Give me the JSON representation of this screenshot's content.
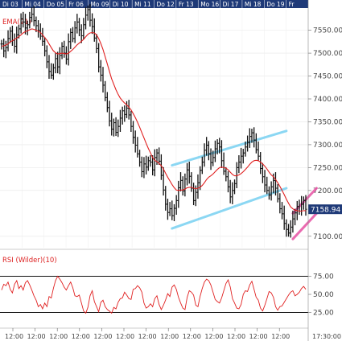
{
  "chart_data": {
    "type": "line",
    "date_labels": [
      "Di 03",
      "Mi 04",
      "Do 05",
      "Fr 06",
      "Mo 09",
      "Di 10",
      "Mi 11",
      "Do 12",
      "Fr 13",
      "Mo 16",
      "Di 17",
      "Mi 18",
      "Do 19",
      "Fr"
    ],
    "time_labels": [
      "12:00",
      "12:00",
      "12:00",
      "12:00",
      "12:00",
      "12:00",
      "12:00",
      "12:00",
      "12:00",
      "12:00",
      "12:00",
      "12:00",
      "12:00"
    ],
    "time_last_label": "17:30:00",
    "price_axis": {
      "ticks": [
        7550,
        7500,
        7450,
        7400,
        7350,
        7300,
        7250,
        7200,
        7100
      ],
      "range": [
        7075,
        7595
      ]
    },
    "rsi_axis": {
      "ticks": [
        75,
        50,
        25
      ],
      "range": [
        10,
        90
      ]
    },
    "last_price_label": "7158.94",
    "ema_label": "EMA(21)",
    "rsi_label": "RSI (Wilder)(10)",
    "colors": {
      "price": "#111111",
      "ema": "#e02020",
      "rsi": "#e02020",
      "channel": "#7fd3f2",
      "wedge": "#e85aa8",
      "header": "#1f3a78",
      "last_badge": "#1f3a78"
    },
    "price_series": [
      7520,
      7505,
      7512,
      7532,
      7548,
      7528,
      7515,
      7540,
      7553,
      7575,
      7568,
      7555,
      7562,
      7578,
      7585,
      7571,
      7560,
      7550,
      7537,
      7526,
      7505,
      7481,
      7460,
      7452,
      7468,
      7488,
      7470,
      7495,
      7515,
      7500,
      7487,
      7525,
      7545,
      7532,
      7555,
      7568,
      7551,
      7538,
      7562,
      7583,
      7595,
      7572,
      7558,
      7533,
      7510,
      7470,
      7452,
      7430,
      7403,
      7381,
      7352,
      7334,
      7348,
      7327,
      7340,
      7358,
      7374,
      7366,
      7380,
      7365,
      7340,
      7316,
      7299,
      7280,
      7262,
      7241,
      7258,
      7251,
      7265,
      7262,
      7245,
      7272,
      7282,
      7264,
      7233,
      7201,
      7170,
      7152,
      7160,
      7145,
      7161,
      7178,
      7206,
      7222,
      7199,
      7225,
      7245,
      7231,
      7205,
      7178,
      7196,
      7217,
      7244,
      7262,
      7288,
      7299,
      7280,
      7261,
      7272,
      7291,
      7303,
      7295,
      7265,
      7242,
      7230,
      7208,
      7186,
      7200,
      7215,
      7250,
      7262,
      7275,
      7282,
      7295,
      7305,
      7318,
      7326,
      7310,
      7289,
      7275,
      7248,
      7230,
      7212,
      7200,
      7190,
      7208,
      7222,
      7205,
      7182,
      7160,
      7149,
      7128,
      7115,
      7107,
      7120,
      7138,
      7151,
      7165,
      7155,
      7170,
      7178,
      7159
    ],
    "ema_series": [
      7515,
      7516,
      7518,
      7520,
      7525,
      7527,
      7530,
      7533,
      7536,
      7540,
      7544,
      7547,
      7549,
      7551,
      7553,
      7552,
      7550,
      7548,
      7545,
      7540,
      7534,
      7528,
      7520,
      7512,
      7505,
      7501,
      7498,
      7499,
      7500,
      7499,
      7498,
      7500,
      7504,
      7508,
      7513,
      7518,
      7522,
      7526,
      7530,
      7536,
      7541,
      7544,
      7545,
      7544,
      7540,
      7532,
      7521,
      7508,
      7492,
      7476,
      7460,
      7444,
      7432,
      7420,
      7410,
      7402,
      7396,
      7391,
      7387,
      7382,
      7376,
      7368,
      7359,
      7349,
      7338,
      7326,
      7315,
      7303,
      7292,
      7282,
      7272,
      7266,
      7263,
      7259,
      7254,
      7247,
      7238,
      7229,
      7221,
      7213,
      7206,
      7201,
      7200,
      7201,
      7201,
      7203,
      7206,
      7207,
      7207,
      7205,
      7204,
      7205,
      7207,
      7211,
      7217,
      7224,
      7229,
      7232,
      7236,
      7241,
      7246,
      7250,
      7251,
      7250,
      7249,
      7245,
      7240,
      7235,
      7232,
      7232,
      7234,
      7237,
      7241,
      7246,
      7251,
      7257,
      7262,
      7265,
      7266,
      7265,
      7262,
      7258,
      7253,
      7247,
      7240,
      7234,
      7230,
      7224,
      7217,
      7209,
      7200,
      7191,
      7181,
      7172,
      7164,
      7160,
      7157,
      7156,
      7155,
      7155,
      7156,
      7156
    ],
    "rsi_series": [
      56,
      64,
      62,
      67,
      57,
      52,
      64,
      69,
      58,
      62,
      56,
      66,
      69,
      63,
      56,
      48,
      42,
      33,
      36,
      30,
      38,
      33,
      47,
      45,
      58,
      69,
      75,
      71,
      66,
      60,
      56,
      62,
      67,
      59,
      48,
      47,
      49,
      38,
      27,
      24,
      32,
      48,
      55,
      40,
      33,
      26,
      39,
      42,
      33,
      29,
      27,
      24,
      32,
      30,
      39,
      44,
      45,
      53,
      49,
      44,
      43,
      57,
      58,
      62,
      59,
      53,
      38,
      31,
      33,
      37,
      33,
      44,
      48,
      36,
      29,
      35,
      42,
      51,
      47,
      60,
      63,
      57,
      46,
      38,
      31,
      29,
      46,
      55,
      53,
      49,
      35,
      33,
      47,
      58,
      67,
      71,
      69,
      63,
      53,
      43,
      40,
      38,
      45,
      55,
      65,
      70,
      60,
      44,
      38,
      31,
      30,
      36,
      50,
      55,
      54,
      63,
      68,
      57,
      46,
      42,
      31,
      27,
      35,
      44,
      54,
      52,
      46,
      33,
      28,
      33,
      34,
      39,
      44,
      49,
      53,
      55,
      48,
      50,
      53,
      58,
      61,
      57
    ],
    "channel_upper": [
      [
        79,
        7255
      ],
      [
        132,
        7330
      ]
    ],
    "channel_lower": [
      [
        79,
        7117
      ],
      [
        132,
        7205
      ]
    ],
    "wedge_upper": [
      [
        135,
        7150
      ],
      [
        146,
        7205
      ]
    ],
    "wedge_lower": [
      [
        135,
        7094
      ],
      [
        146,
        7150
      ]
    ],
    "rsi_levels": [
      75,
      25
    ]
  }
}
